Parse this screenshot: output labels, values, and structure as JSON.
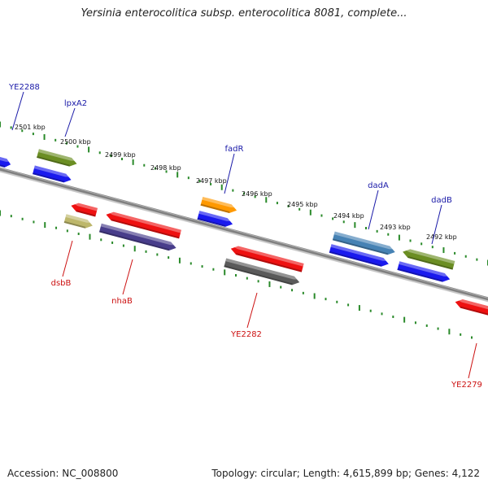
{
  "header": {
    "title": "Yersinia enterocolitica subsp. enterocolitica 8081, complete..."
  },
  "footer": {
    "accession": "Accession: NC_008800",
    "summary": "Topology: circular; Length: 4,615,899 bp; Genes: 4,122"
  },
  "colors": {
    "backbone": "#808080",
    "ruler": "#2a8a2a",
    "forward_label": "#1a1aa8",
    "reverse_label": "#cc1111"
  },
  "ruler_labels": [
    "2501 kbp",
    "2500 kbp",
    "2499 kbp",
    "2498 kbp",
    "2497 kbp",
    "2496 kbp",
    "2495 kbp",
    "2494 kbp",
    "2493 kbp",
    "2492 kbp"
  ],
  "features": [
    {
      "strand": "forward",
      "color": "#1a1aee",
      "label": ""
    },
    {
      "strand": "forward",
      "color": "#6b8e23",
      "label": "lpxA2"
    },
    {
      "strand": "forward",
      "color": "#1a1aee",
      "label": ""
    },
    {
      "strand": "forward",
      "color": "#ff9900",
      "label": "fadR"
    },
    {
      "strand": "forward",
      "color": "#1a1aee",
      "label": ""
    },
    {
      "strand": "forward",
      "color": "#4682b4",
      "label": "dadA"
    },
    {
      "strand": "forward",
      "color": "#1a1aee",
      "label": ""
    },
    {
      "strand": "forward",
      "color": "#1a1aee",
      "label": ""
    },
    {
      "strand": "forward",
      "color": "#6b8e23",
      "label": "dadB"
    },
    {
      "strand": "reverse",
      "color": "#ee1111",
      "label": ""
    },
    {
      "strand": "reverse",
      "color": "#bdb76b",
      "label": "dsbB"
    },
    {
      "strand": "reverse",
      "color": "#ee1111",
      "label": ""
    },
    {
      "strand": "reverse",
      "color": "#483d8b",
      "label": "nhaB"
    },
    {
      "strand": "reverse",
      "color": "#ee1111",
      "label": ""
    },
    {
      "strand": "reverse",
      "color": "#5a5a5a",
      "label": "YE2282"
    },
    {
      "strand": "reverse",
      "color": "#ee1111",
      "label": "YE2279"
    }
  ],
  "offscreen_labels": [
    {
      "strand": "forward",
      "label": "YE2288"
    }
  ]
}
